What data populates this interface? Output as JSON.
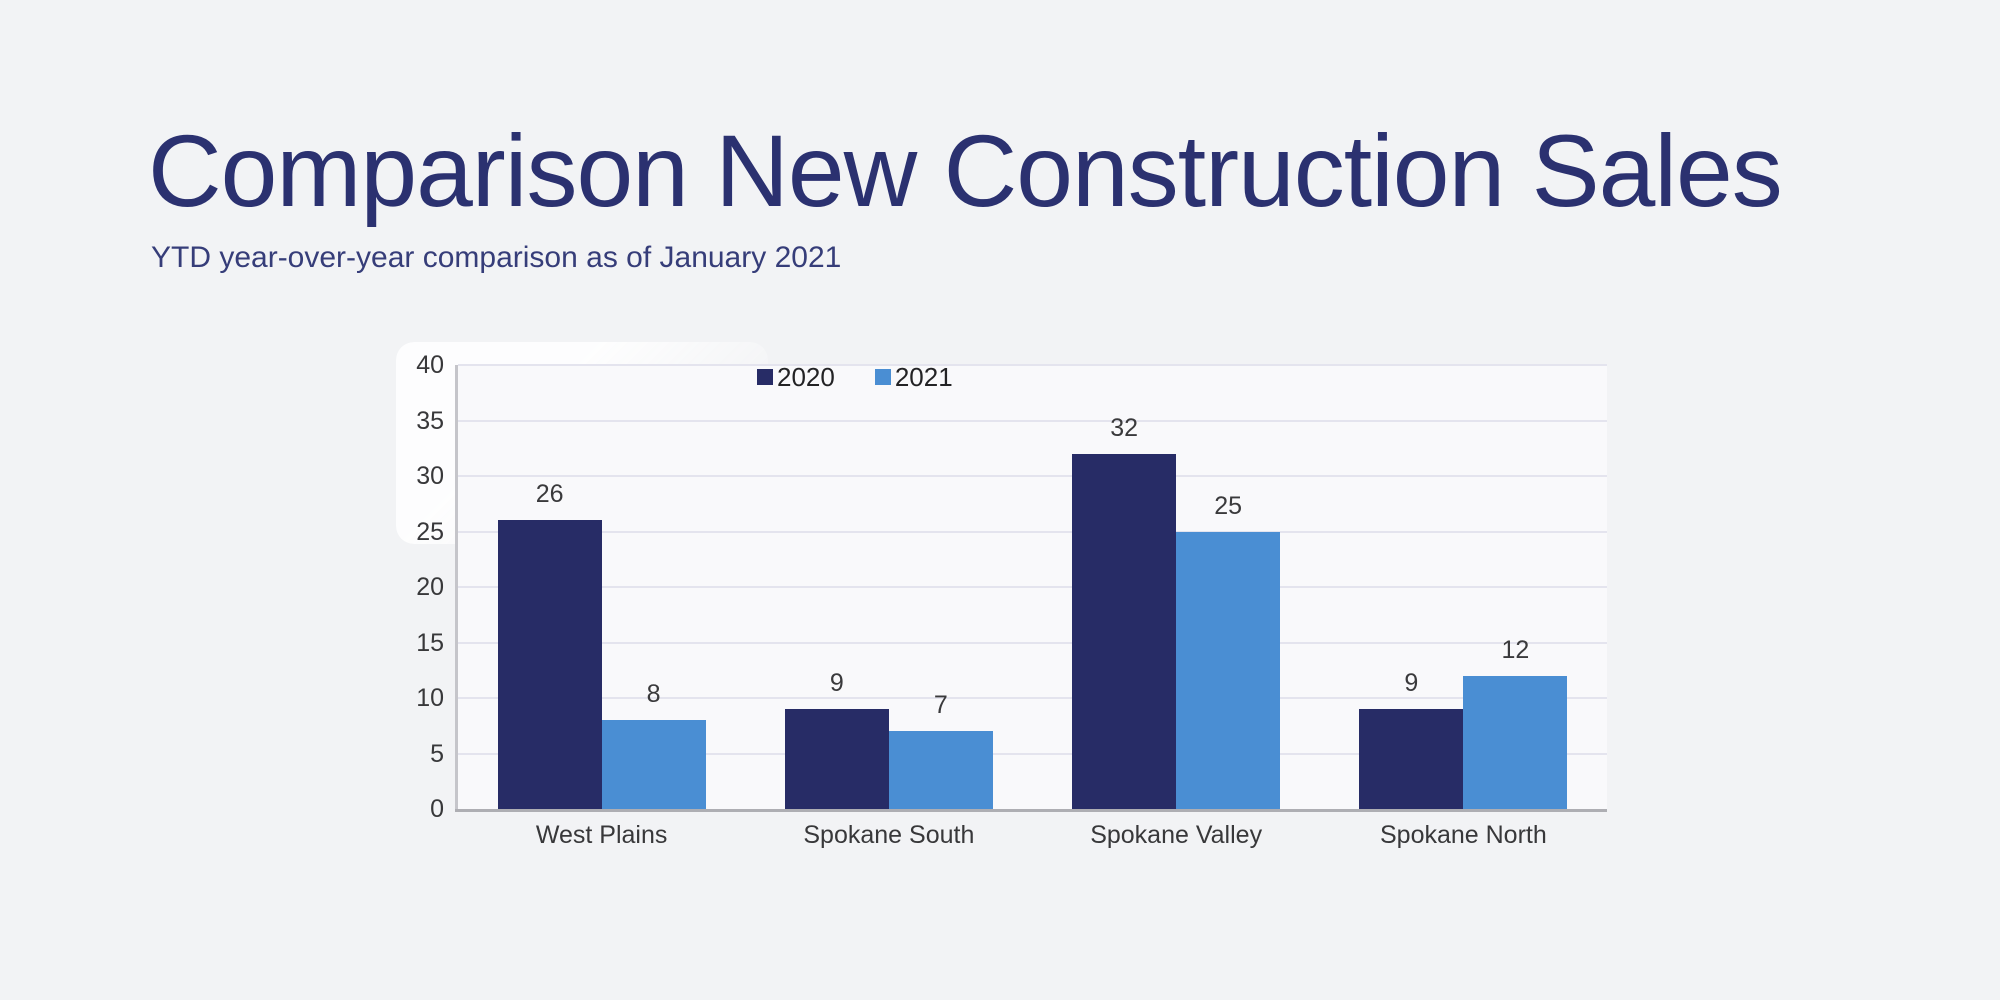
{
  "page": {
    "title": "Comparison New Construction Sales",
    "subtitle": "YTD year-over-year comparison as of January 2021"
  },
  "chart_data": {
    "type": "bar",
    "title": "",
    "xlabel": "",
    "ylabel": "",
    "categories": [
      "West Plains",
      "Spokane South",
      "Spokane Valley",
      "Spokane North"
    ],
    "series": [
      {
        "name": "2020",
        "color": "#272c66",
        "values": [
          26,
          9,
          32,
          9
        ]
      },
      {
        "name": "2021",
        "color": "#4a8ed3",
        "values": [
          8,
          7,
          25,
          12
        ]
      }
    ],
    "ylim": [
      0,
      40
    ],
    "yticks": [
      0,
      5,
      10,
      15,
      20,
      25,
      30,
      35,
      40
    ],
    "grid": true,
    "value_labels": true,
    "legend_position": "top-inside-left-of-center"
  },
  "colors": {
    "background": "#f2f3f5",
    "title_text": "#2b3170",
    "subtitle_text": "#363d79",
    "series_2020": "#272c66",
    "series_2021": "#4a8ed3",
    "gridline": "#e4e4ee",
    "axis_line": "#aeaeb3",
    "label_text": "#38383a"
  }
}
